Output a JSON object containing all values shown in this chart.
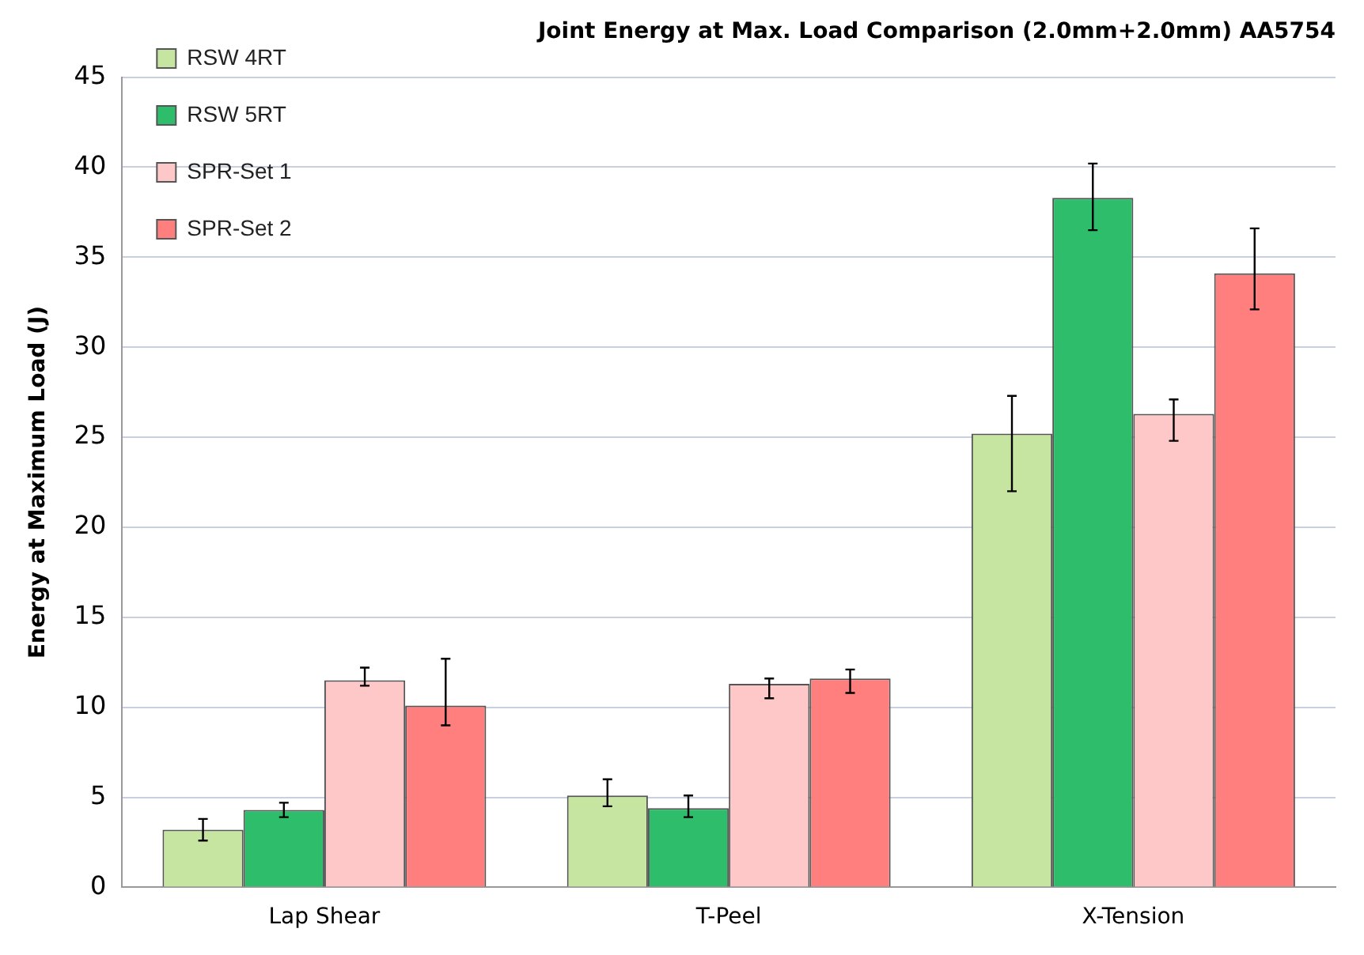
{
  "chart_data": {
    "type": "bar",
    "title": "Joint Energy at Max. Load Comparison (2.0mm+2.0mm) AA5754",
    "ylabel": "Energy at Maximum Load (J)",
    "categories": [
      "Lap Shear",
      "T-Peel",
      "X-Tension"
    ],
    "series": [
      {
        "name": "RSW 4RT",
        "color": "#c6e5a0",
        "values": [
          3.2,
          5.1,
          25.2
        ],
        "errors": [
          [
            2.6,
            3.8
          ],
          [
            4.5,
            6.0
          ],
          [
            22.0,
            27.3
          ]
        ]
      },
      {
        "name": "RSW 5RT",
        "color": "#2ebd6b",
        "values": [
          4.3,
          4.4,
          38.3
        ],
        "errors": [
          [
            3.9,
            4.7
          ],
          [
            3.9,
            5.1
          ],
          [
            36.5,
            40.2
          ]
        ]
      },
      {
        "name": "SPR-Set 1",
        "color": "#ffc8c8",
        "values": [
          11.5,
          11.3,
          26.3
        ],
        "errors": [
          [
            11.2,
            12.2
          ],
          [
            10.5,
            11.6
          ],
          [
            24.8,
            27.1
          ]
        ]
      },
      {
        "name": "SPR-Set 2",
        "color": "#ff7f7f",
        "values": [
          10.1,
          11.6,
          34.1
        ],
        "errors": [
          [
            9.0,
            12.7
          ],
          [
            10.8,
            12.1
          ],
          [
            32.1,
            36.6
          ]
        ]
      }
    ],
    "ylim": [
      0,
      45
    ],
    "yticks": [
      0,
      5,
      10,
      15,
      20,
      25,
      30,
      35,
      40,
      45
    ],
    "grid": "y",
    "legend": "top left"
  }
}
